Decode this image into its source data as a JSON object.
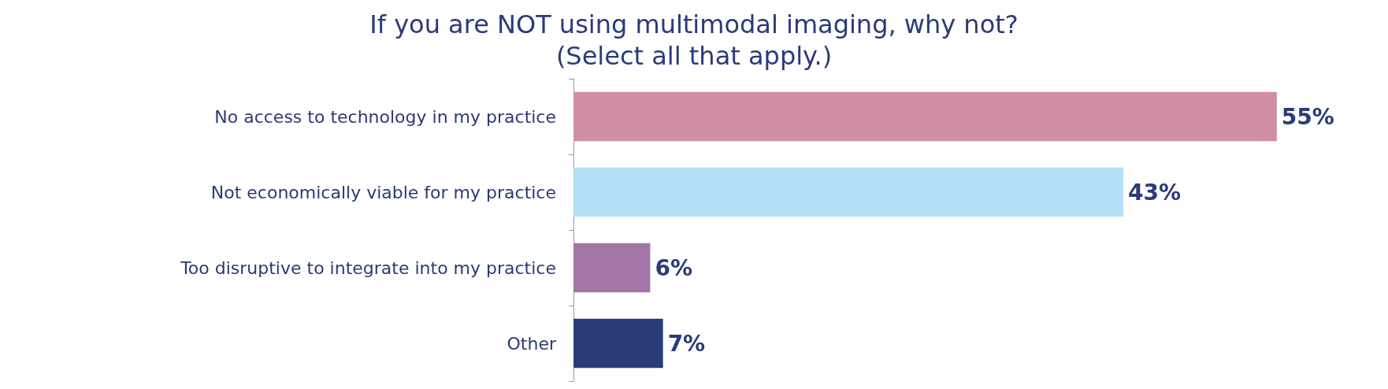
{
  "chart_data": {
    "type": "bar",
    "orientation": "horizontal",
    "title": "If you are NOT using multimodal imaging, why not?\n(Select all that apply.)",
    "categories": [
      "No access to technology in my practice",
      "Not economically viable for my practice",
      "Too disruptive to integrate into my practice",
      "Other"
    ],
    "values": [
      55,
      43,
      6,
      7
    ],
    "colors": [
      "#d08fa4",
      "#b4dff4",
      "#a275a6",
      "#283c78"
    ],
    "value_labels": [
      "55%",
      "43%",
      "6%",
      "7%"
    ]
  }
}
